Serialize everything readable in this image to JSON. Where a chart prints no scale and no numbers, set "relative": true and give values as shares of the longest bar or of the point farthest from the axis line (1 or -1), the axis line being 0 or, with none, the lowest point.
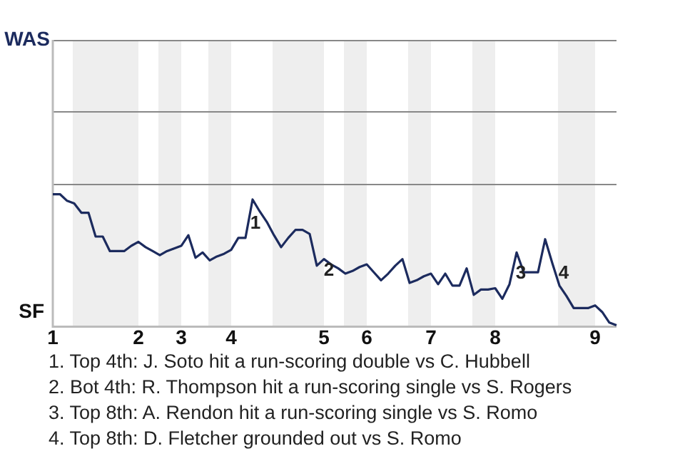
{
  "chart_data": {
    "type": "line",
    "relative": true,
    "categories": [
      "1",
      null,
      null,
      null,
      null,
      null,
      null,
      null,
      null,
      null,
      null,
      null,
      "2",
      null,
      null,
      null,
      null,
      null,
      "3",
      null,
      null,
      null,
      null,
      null,
      null,
      "4",
      null,
      null,
      null,
      null,
      null,
      null,
      null,
      null,
      null,
      null,
      null,
      null,
      "5",
      null,
      null,
      null,
      null,
      null,
      "6",
      null,
      null,
      null,
      null,
      null,
      null,
      null,
      null,
      "7",
      null,
      null,
      null,
      null,
      null,
      null,
      null,
      null,
      "8",
      null,
      null,
      null,
      null,
      null,
      null,
      null,
      null,
      null,
      null,
      null,
      null,
      null,
      "9",
      null,
      null,
      null
    ],
    "series": [
      {
        "color": "#1c2b5e",
        "values": [
          1,
          1,
          0.95,
          0.93,
          0.86,
          0.86,
          0.68,
          0.68,
          0.57,
          0.57,
          0.57,
          0.61,
          0.64,
          0.6,
          0.57,
          0.54,
          0.57,
          0.59,
          0.61,
          0.69,
          0.52,
          0.56,
          0.5,
          0.53,
          0.55,
          0.58,
          0.67,
          0.67,
          0.96,
          0.87,
          0.79,
          0.69,
          0.6,
          0.67,
          0.73,
          0.73,
          0.7,
          0.46,
          0.51,
          0.47,
          0.44,
          0.4,
          0.42,
          0.45,
          0.47,
          0.41,
          0.35,
          0.4,
          0.46,
          0.51,
          0.33,
          0.35,
          0.38,
          0.4,
          0.32,
          0.4,
          0.31,
          0.31,
          0.44,
          0.24,
          0.28,
          0.28,
          0.29,
          0.21,
          0.32,
          0.56,
          0.41,
          0.41,
          0.41,
          0.66,
          0.48,
          0.31,
          0.23,
          0.14,
          0.14,
          0.14,
          0.16,
          0.11,
          0.03,
          0.01
        ]
      }
    ],
    "legend": false,
    "marker": "none",
    "line_style": "solid",
    "annotations": [
      "WAS",
      "SF",
      "1",
      "2",
      "3",
      "4",
      "1. Top 4th: J. Soto hit a run-scoring double vs C. Hubbell",
      "2. Bot 4th: R. Thompson hit a run-scoring single vs S. Rogers",
      "3. Top 8th: A. Rendon hit a run-scoring single vs S. Romo",
      "4. Top 8th: D. Fletcher grounded out vs S. Romo"
    ]
  }
}
